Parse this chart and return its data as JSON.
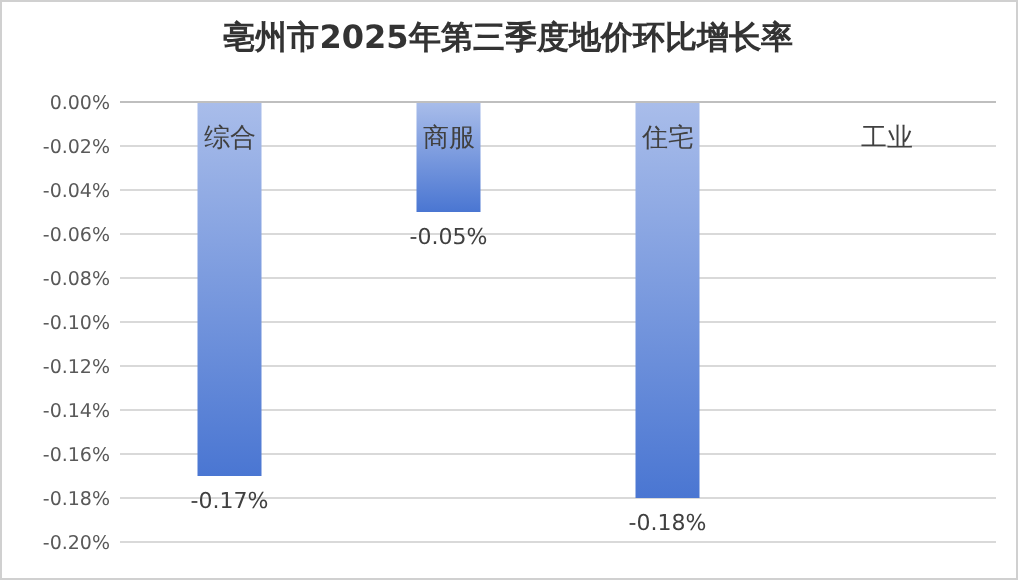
{
  "chart_data": {
    "type": "bar",
    "title": "亳州市2025年第三季度地价环比增长率",
    "categories": [
      "综合",
      "商服",
      "住宅",
      "工业"
    ],
    "values": [
      -0.17,
      -0.05,
      -0.18,
      0
    ],
    "value_labels": [
      "-0.17%",
      "-0.05%",
      "-0.18%",
      null
    ],
    "color": "#4a76d2",
    "ylim": [
      -0.2,
      0
    ],
    "yticks": [
      {
        "value": 0,
        "label": "0.00%"
      },
      {
        "value": -0.02,
        "label": "-0.02%"
      },
      {
        "value": -0.04,
        "label": "-0.04%"
      },
      {
        "value": -0.06,
        "label": "-0.06%"
      },
      {
        "value": -0.08,
        "label": "-0.08%"
      },
      {
        "value": -0.1,
        "label": "-0.10%"
      },
      {
        "value": -0.12,
        "label": "-0.12%"
      },
      {
        "value": -0.14,
        "label": "-0.14%"
      },
      {
        "value": -0.16,
        "label": "-0.16%"
      },
      {
        "value": -0.18,
        "label": "-0.18%"
      },
      {
        "value": -0.2,
        "label": "-0.20%"
      }
    ],
    "grid": "y"
  }
}
